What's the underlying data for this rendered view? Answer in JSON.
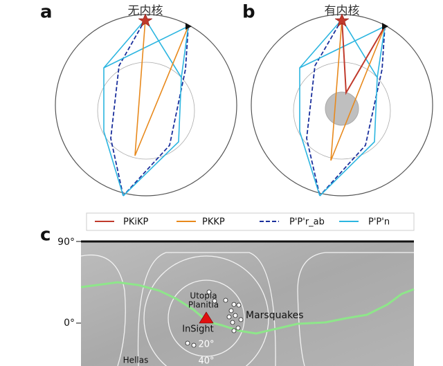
{
  "panel_a": {
    "letter": "a",
    "title": "无内核"
  },
  "panel_b": {
    "letter": "b",
    "title": "有内核"
  },
  "legend": [
    {
      "label": "PKiKP",
      "color": "#c0392b"
    },
    {
      "label": "PKKP",
      "color": "#e8891c"
    },
    {
      "label": "P'P'r_ab",
      "color": "#1a2f9c"
    },
    {
      "label": "P'P'n",
      "color": "#2bb5e0"
    }
  ],
  "panel_c": {
    "letter": "c",
    "lat_labels": [
      "90°",
      "0°"
    ],
    "labels": {
      "region": [
        "Utopia",
        "Planitia"
      ],
      "events": "Marsquakes",
      "station": "InSight",
      "ring_inner": "20°",
      "ring_outer": "40°",
      "basin": "Hellas"
    }
  }
}
